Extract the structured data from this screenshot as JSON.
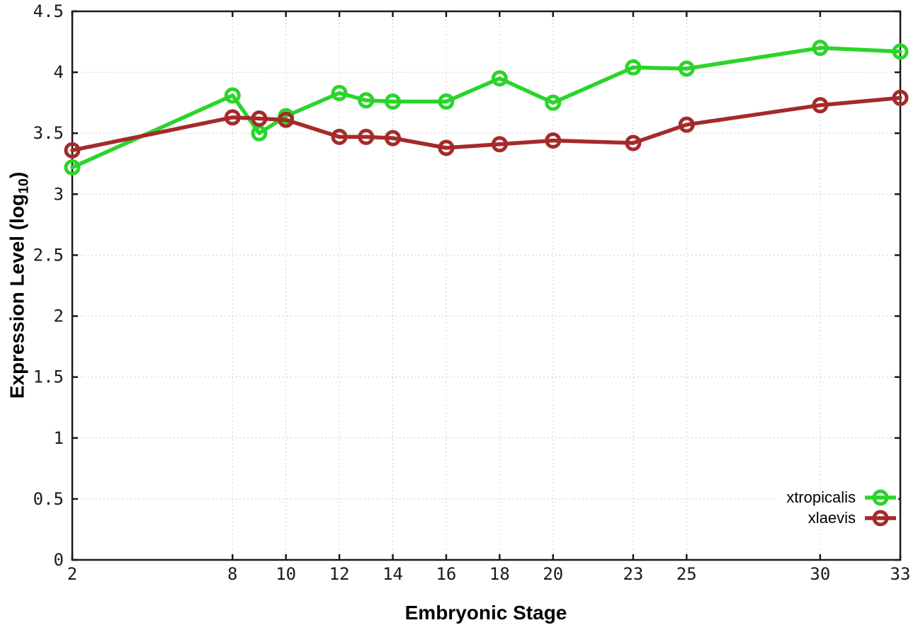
{
  "figure": {
    "background": "#ffffff",
    "xlabel": "Embryonic Stage",
    "ylabel_main": "Expression Level (log",
    "ylabel_sub": "10",
    "ylabel_close": ")"
  },
  "chart_data": {
    "type": "line",
    "title": "",
    "xlabel": "Embryonic Stage",
    "ylabel": "Expression Level (log10)",
    "x": [
      2,
      8,
      9,
      10,
      12,
      13,
      14,
      16,
      18,
      20,
      23,
      25,
      30,
      33
    ],
    "series": [
      {
        "name": "xtropicalis",
        "color": "#2bd42b",
        "values": [
          3.22,
          3.81,
          3.5,
          3.64,
          3.83,
          3.77,
          3.76,
          3.76,
          3.95,
          3.75,
          4.04,
          4.03,
          4.2,
          4.17
        ]
      },
      {
        "name": "xlaevis",
        "color": "#a52a2a",
        "values": [
          3.36,
          3.63,
          3.62,
          3.61,
          3.47,
          3.47,
          3.46,
          3.38,
          3.41,
          3.44,
          3.42,
          3.57,
          3.73,
          3.79
        ]
      }
    ],
    "xlim": [
      2,
      33
    ],
    "ylim": [
      0,
      4.5
    ],
    "xtick_labels": [
      "2",
      "8",
      "10",
      "12",
      "14",
      "16",
      "18",
      "20",
      "23",
      "25",
      "30",
      "33"
    ],
    "xtick_values": [
      2,
      8,
      10,
      12,
      14,
      16,
      18,
      20,
      23,
      25,
      30,
      33
    ],
    "ytick_labels": [
      "0",
      "0.5",
      "1",
      "1.5",
      "2",
      "2.5",
      "3",
      "3.5",
      "4",
      "4.5"
    ],
    "ytick_values": [
      0,
      0.5,
      1,
      1.5,
      2,
      2.5,
      3,
      3.5,
      4,
      4.5
    ],
    "grid": true,
    "grid_style": "dotted",
    "marker": "open-circle",
    "legend_position": "bottom-right-inside",
    "grid_color": "#bdbdbd",
    "border_color": "#1a1a1a",
    "tick_label_color": "#1a1a1a"
  }
}
